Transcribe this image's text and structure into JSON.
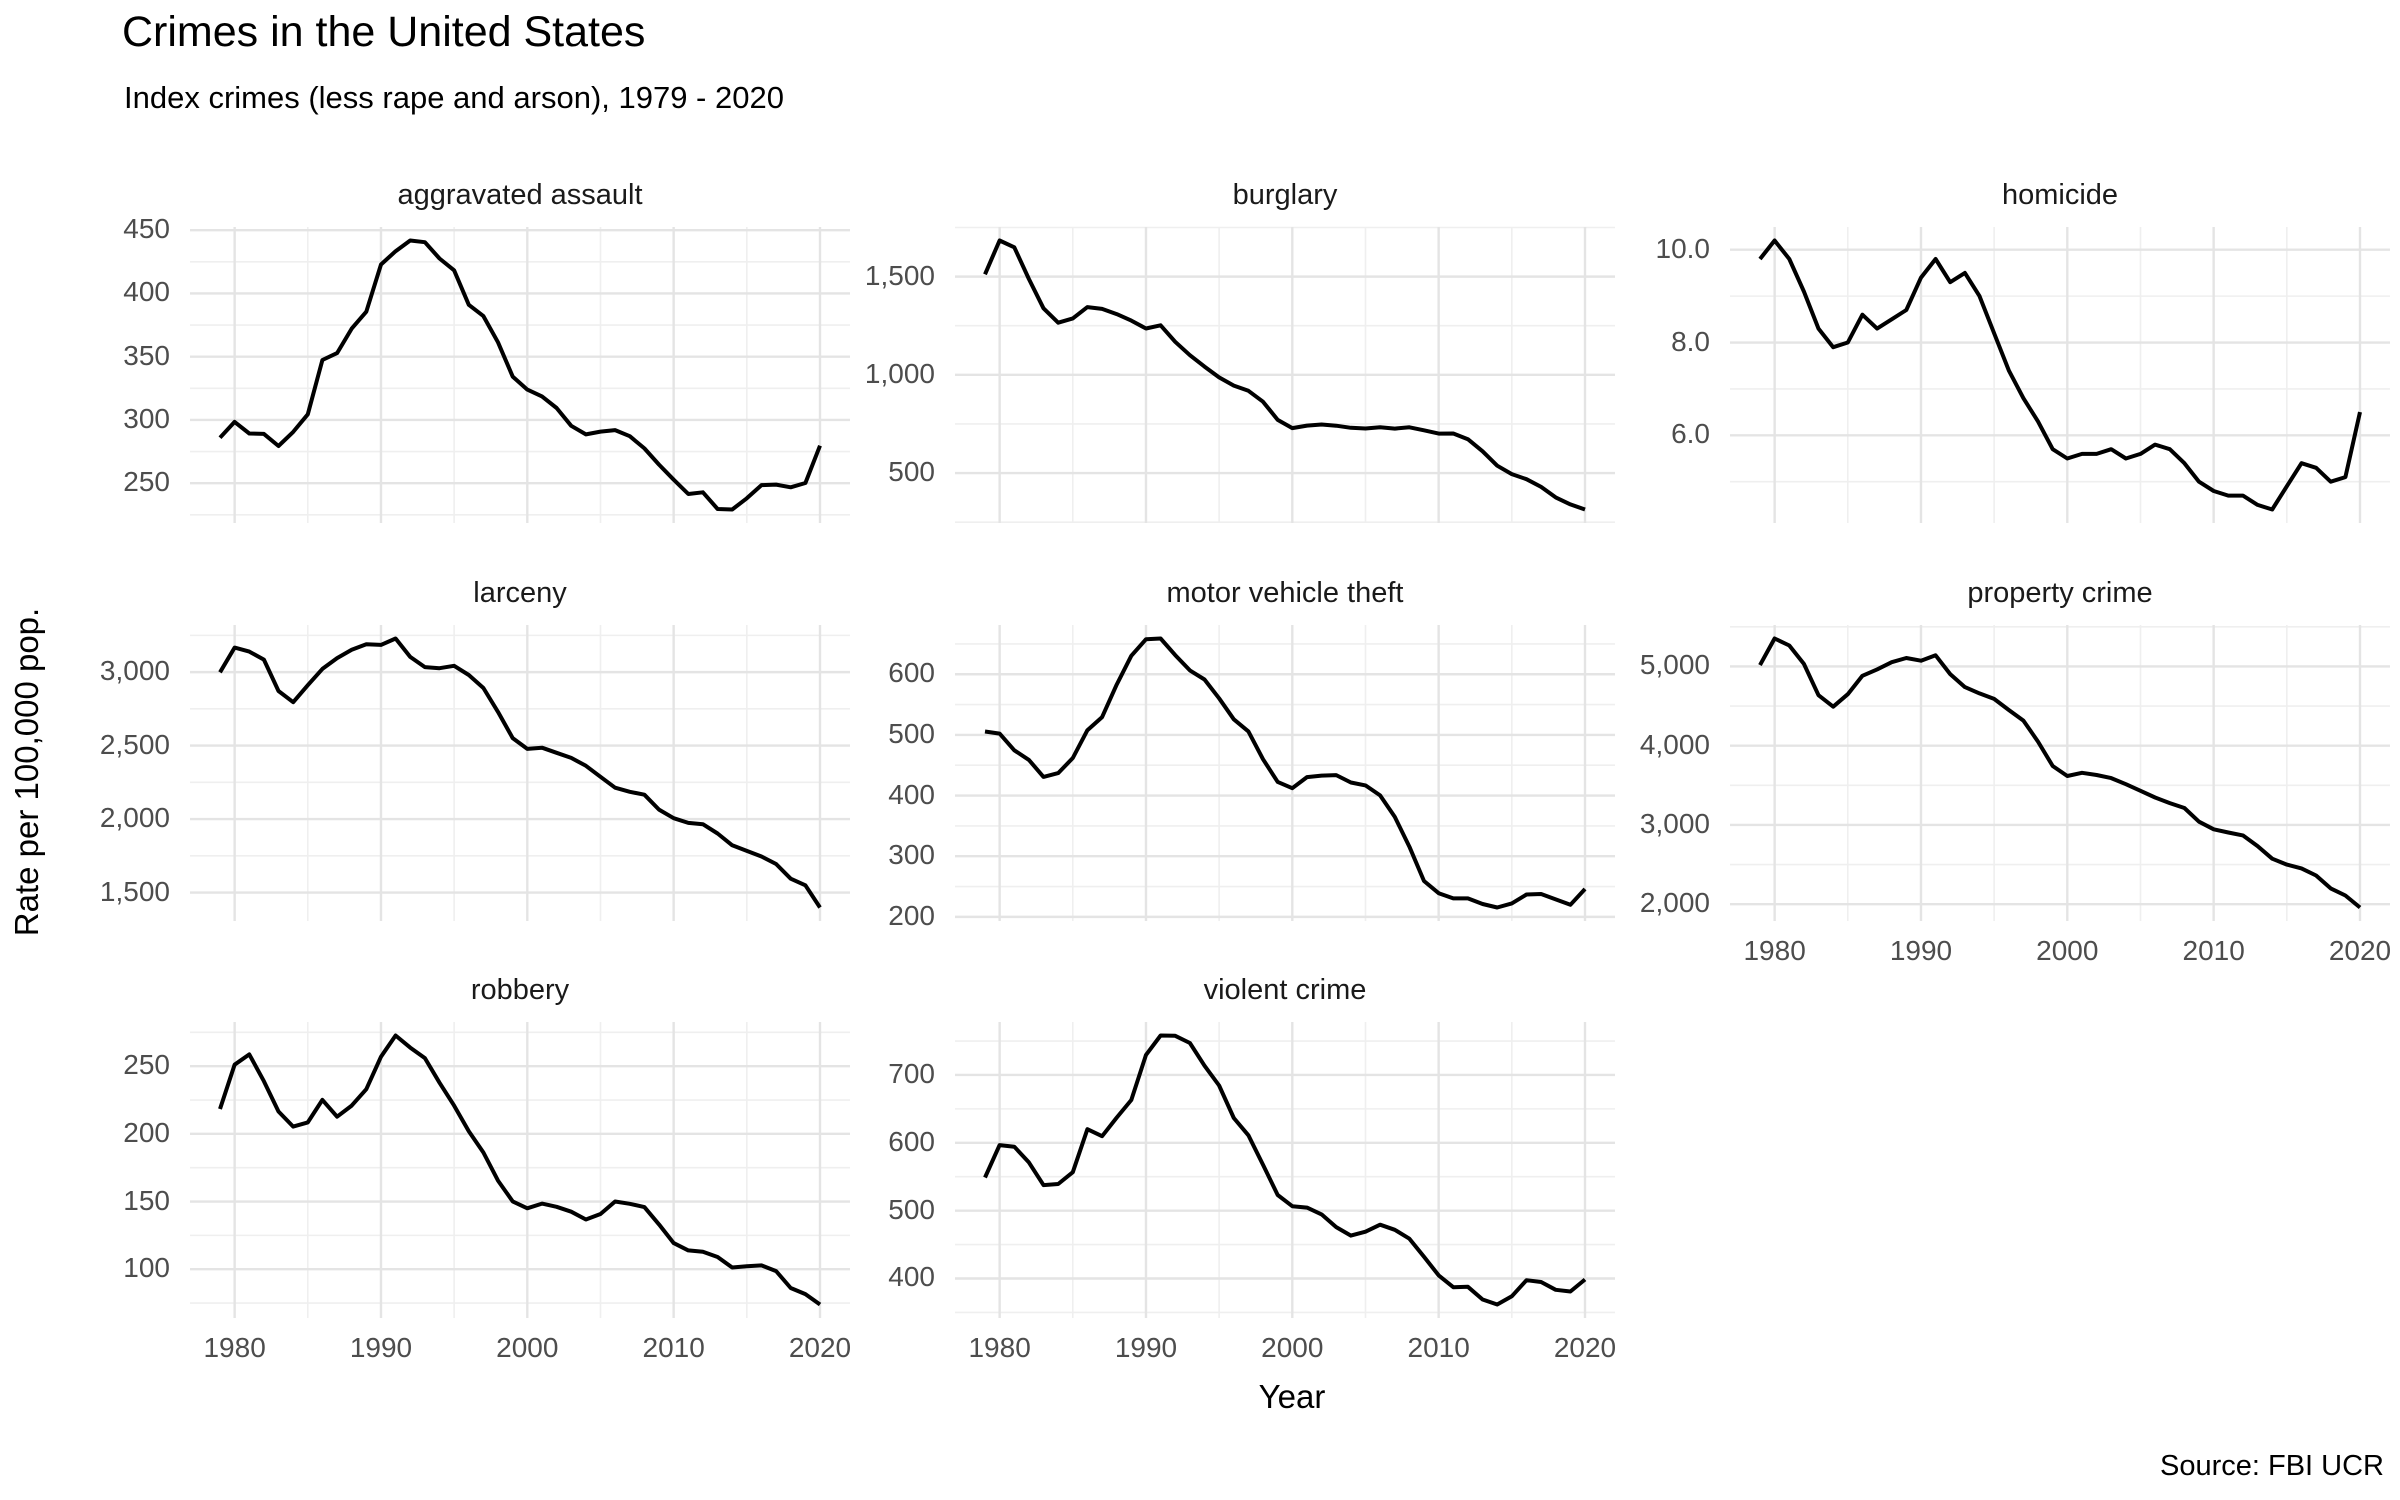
{
  "title": "Crimes in the United States",
  "subtitle": "Index crimes (less rape and arson), 1979 - 2020",
  "y_axis_label": "Rate per 100,000 pop.",
  "x_axis_label": "Year",
  "source": "Source: FBI UCR",
  "colors": {
    "line": "#000000",
    "grid_major": "#e4e4e4",
    "grid_minor": "#efefef",
    "tick_label": "#4d4d4d",
    "facet_title": "#1a1a1a",
    "background": "#ffffff"
  },
  "chart_data": {
    "type": "line",
    "layout": "facet_wrap_3col_free_y",
    "grid": "major_and_minor",
    "legend_position": "none",
    "x_range": [
      1979,
      2020
    ],
    "years": [
      1979,
      1980,
      1981,
      1982,
      1983,
      1984,
      1985,
      1986,
      1987,
      1988,
      1989,
      1990,
      1991,
      1992,
      1993,
      1994,
      1995,
      1996,
      1997,
      1998,
      1999,
      2000,
      2001,
      2002,
      2003,
      2004,
      2005,
      2006,
      2007,
      2008,
      2009,
      2010,
      2011,
      2012,
      2013,
      2014,
      2015,
      2016,
      2017,
      2018,
      2019,
      2020
    ],
    "x_ticks": [
      1980,
      1990,
      2000,
      2010,
      2020
    ],
    "x_tick_labels": [
      "1980",
      "1990",
      "2000",
      "2010",
      "2020"
    ],
    "facets": [
      {
        "title": "aggravated assault",
        "y_ticks": [
          250,
          300,
          350,
          400,
          450
        ],
        "y_tick_labels": [
          "250",
          "300",
          "350",
          "400",
          "450"
        ],
        "show_x_labels": false,
        "values": [
          286.0,
          298.5,
          289.3,
          289.0,
          279.4,
          290.6,
          304.5,
          347.4,
          352.9,
          372.2,
          385.6,
          422.9,
          433.4,
          441.9,
          440.5,
          427.6,
          418.3,
          391.0,
          382.1,
          361.4,
          334.3,
          324.0,
          318.6,
          309.5,
          295.4,
          288.6,
          290.8,
          292.0,
          287.2,
          277.5,
          264.7,
          252.8,
          241.5,
          242.8,
          229.6,
          229.2,
          238.1,
          248.5,
          248.9,
          246.8,
          250.2,
          279.7
        ]
      },
      {
        "title": "burglary",
        "y_ticks": [
          500,
          1000,
          1500
        ],
        "y_tick_labels": [
          "500",
          "1,000",
          "1,500"
        ],
        "show_x_labels": false,
        "values": [
          1511.9,
          1684.1,
          1649.5,
          1488.0,
          1338.7,
          1265.5,
          1287.3,
          1344.6,
          1335.7,
          1309.2,
          1276.3,
          1235.9,
          1252.1,
          1168.4,
          1099.7,
          1042.1,
          987.0,
          945.0,
          918.8,
          863.2,
          770.4,
          728.8,
          741.8,
          747.0,
          741.0,
          730.3,
          726.9,
          733.1,
          726.1,
          733.0,
          717.7,
          701.0,
          701.3,
          672.2,
          610.5,
          537.2,
          494.7,
          468.9,
          429.7,
          376.0,
          340.5,
          314.2
        ]
      },
      {
        "title": "homicide",
        "y_ticks": [
          6,
          8,
          10
        ],
        "y_tick_labels": [
          "6.0",
          "8.0",
          "10.0"
        ],
        "show_x_labels": false,
        "values": [
          9.8,
          10.2,
          9.8,
          9.1,
          8.3,
          7.9,
          8.0,
          8.6,
          8.3,
          8.5,
          8.7,
          9.4,
          9.8,
          9.3,
          9.5,
          9.0,
          8.2,
          7.4,
          6.8,
          6.3,
          5.7,
          5.5,
          5.6,
          5.6,
          5.7,
          5.5,
          5.6,
          5.8,
          5.7,
          5.4,
          5.0,
          4.8,
          4.7,
          4.7,
          4.5,
          4.4,
          4.9,
          5.4,
          5.3,
          5.0,
          5.1,
          6.5
        ]
      },
      {
        "title": "larceny",
        "y_ticks": [
          1500,
          2000,
          2500,
          3000
        ],
        "y_tick_labels": [
          "1,500",
          "2,000",
          "2,500",
          "3,000"
        ],
        "show_x_labels": false,
        "values": [
          2999.1,
          3167.0,
          3139.7,
          3084.9,
          2871.3,
          2795.2,
          2911.2,
          3022.1,
          3095.4,
          3151.7,
          3189.6,
          3184.9,
          3229.1,
          3103.6,
          3033.9,
          3026.9,
          3043.2,
          2980.3,
          2891.8,
          2729.5,
          2550.7,
          2477.3,
          2485.7,
          2450.7,
          2416.5,
          2362.3,
          2287.8,
          2213.2,
          2185.4,
          2166.1,
          2064.5,
          2005.8,
          1974.1,
          1965.4,
          1901.6,
          1821.5,
          1783.6,
          1745.4,
          1694.4,
          1594.6,
          1549.5,
          1398.0
        ]
      },
      {
        "title": "motor vehicle theft",
        "y_ticks": [
          200,
          300,
          400,
          500,
          600
        ],
        "y_tick_labels": [
          "200",
          "300",
          "400",
          "500",
          "600"
        ],
        "show_x_labels": false,
        "values": [
          505.6,
          502.2,
          474.7,
          458.8,
          430.8,
          437.1,
          462.0,
          507.8,
          529.4,
          582.9,
          630.4,
          657.8,
          659.0,
          631.6,
          606.3,
          591.3,
          560.3,
          525.7,
          505.7,
          459.9,
          422.5,
          412.2,
          430.5,
          432.9,
          433.7,
          421.5,
          416.8,
          400.2,
          364.9,
          315.7,
          259.2,
          239.1,
          230.4,
          230.4,
          221.3,
          215.4,
          222.2,
          236.9,
          237.7,
          228.9,
          219.9,
          246.0
        ]
      },
      {
        "title": "property crime",
        "y_ticks": [
          2000,
          3000,
          4000,
          5000
        ],
        "y_tick_labels": [
          "2,000",
          "3,000",
          "4,000",
          "5,000"
        ],
        "show_x_labels": true,
        "values": [
          5016.6,
          5353.3,
          5263.9,
          5032.5,
          4637.4,
          4492.1,
          4650.5,
          4881.8,
          4963.0,
          5054.0,
          5107.1,
          5073.1,
          5140.2,
          4903.7,
          4740.0,
          4660.2,
          4590.5,
          4451.0,
          4316.3,
          4052.5,
          3743.6,
          3618.3,
          3658.1,
          3630.6,
          3591.2,
          3514.1,
          3431.5,
          3346.6,
          3276.4,
          3214.6,
          3041.3,
          2945.9,
          2905.4,
          2868.0,
          2733.6,
          2574.1,
          2500.5,
          2451.6,
          2362.2,
          2199.5,
          2109.9,
          1958.2
        ]
      },
      {
        "title": "robbery",
        "y_ticks": [
          100,
          150,
          200,
          250
        ],
        "y_tick_labels": [
          "100",
          "150",
          "200",
          "250"
        ],
        "show_x_labels": true,
        "values": [
          218.4,
          251.1,
          258.7,
          238.9,
          216.5,
          205.4,
          208.5,
          225.1,
          212.7,
          220.9,
          233.0,
          257.0,
          272.7,
          263.7,
          256.0,
          237.8,
          220.9,
          201.9,
          186.2,
          165.5,
          150.1,
          145.0,
          148.5,
          146.1,
          142.5,
          136.7,
          140.8,
          150.0,
          148.3,
          145.9,
          133.1,
          119.3,
          113.9,
          112.9,
          109.0,
          101.3,
          102.2,
          102.8,
          98.6,
          86.1,
          81.6,
          73.9
        ]
      },
      {
        "title": "violent crime",
        "y_ticks": [
          400,
          500,
          600,
          700
        ],
        "y_tick_labels": [
          "400",
          "500",
          "600",
          "700"
        ],
        "show_x_labels": true,
        "values": [
          548.9,
          596.6,
          594.3,
          571.1,
          537.7,
          539.2,
          556.6,
          620.1,
          609.7,
          637.2,
          663.1,
          729.6,
          758.2,
          757.7,
          747.1,
          713.6,
          684.5,
          636.6,
          611.0,
          567.6,
          523.0,
          506.5,
          504.5,
          494.4,
          475.8,
          463.2,
          469.0,
          479.3,
          471.8,
          458.6,
          431.9,
          404.5,
          387.1,
          387.8,
          369.1,
          361.6,
          373.7,
          397.5,
          394.9,
          383.4,
          380.8,
          398.5
        ]
      }
    ]
  }
}
